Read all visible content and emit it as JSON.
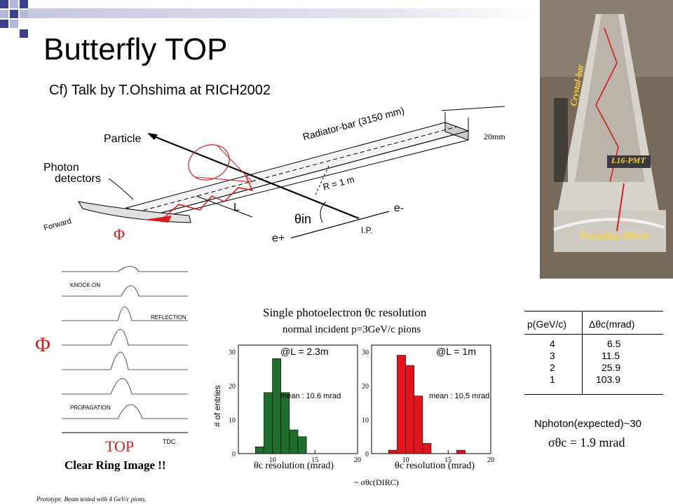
{
  "slide": {
    "title": "Butterfly TOP",
    "subtitle": "Cf) Talk by T.Ohshima at RICH2002"
  },
  "diagram": {
    "particle": "Particle",
    "photon_detectors_1": "Photon",
    "photon_detectors_2": "detectors",
    "radiator_bar": "Radiator-bar (3150 mm)",
    "width": "20mm",
    "radius": "R = 1 m",
    "length": "L",
    "theta_in": "θin",
    "ip": "I.P.",
    "e_minus": "e-",
    "e_plus": "e+",
    "forward": "Forward",
    "phi": "Φ"
  },
  "photo": {
    "crystal_bar": "Crystal-bar",
    "pmt": "L16-PMT",
    "mirror": "Focusing-Mirror"
  },
  "ring_image": {
    "phi": "Φ",
    "labels": [
      "KNOCK-ON",
      "REFLECTION",
      "PROPAGATION"
    ],
    "top": "TOP",
    "caption": "Clear Ring Image !!",
    "tdc": "TDC"
  },
  "histograms": {
    "title": "Single photoelectron θc resolution",
    "subtitle": "normal incident p=3GeV/c pions",
    "ylabel": "# of entries",
    "xlabel": "θc  resolution  (mrad)",
    "dirc_note": "~ σθc(DIRC)",
    "left": {
      "label": "@L = 2.3m",
      "mean": "mean : 10.6 mrad",
      "color": "#1e6e2e"
    },
    "right": {
      "label": "@L = 1m",
      "mean": "mean : 10.5 mrad",
      "color": "#e3141b"
    },
    "yticks": [
      "0",
      "10",
      "20",
      "30"
    ],
    "xticks": [
      "10",
      "15",
      "20"
    ]
  },
  "chart_data": [
    {
      "type": "bar",
      "xlabel": "θc  resolution  (mrad)",
      "ylabel": "# of entries",
      "xlim": [
        6,
        20
      ],
      "ylim": [
        0,
        32
      ],
      "bin_width": 1,
      "x": [
        8,
        9,
        10,
        11,
        12,
        13
      ],
      "values": [
        2,
        18,
        28,
        18,
        7,
        5
      ]
    },
    {
      "type": "bar",
      "xlabel": "θc  resolution  (mrad)",
      "ylabel": "# of entries",
      "xlim": [
        6,
        20
      ],
      "ylim": [
        0,
        32
      ],
      "bin_width": 1,
      "x": [
        8,
        9,
        10,
        11,
        12,
        16
      ],
      "values": [
        1,
        29,
        26,
        17,
        3,
        1
      ]
    }
  ],
  "table": {
    "header_p": "p(GeV/c)",
    "header_dtheta": "Δθc(mrad)",
    "rows": [
      {
        "p": "4",
        "d": "6.5"
      },
      {
        "p": "3",
        "d": "11.5"
      },
      {
        "p": "2",
        "d": "25.9"
      },
      {
        "p": "1",
        "d": "103.9"
      }
    ]
  },
  "formula": {
    "nphoton": "Nphoton(expected)~30",
    "sigma": "σθc = 1.9 mrad"
  },
  "footnote": "Prototype. Beam tested with 4 GeV/c pions."
}
